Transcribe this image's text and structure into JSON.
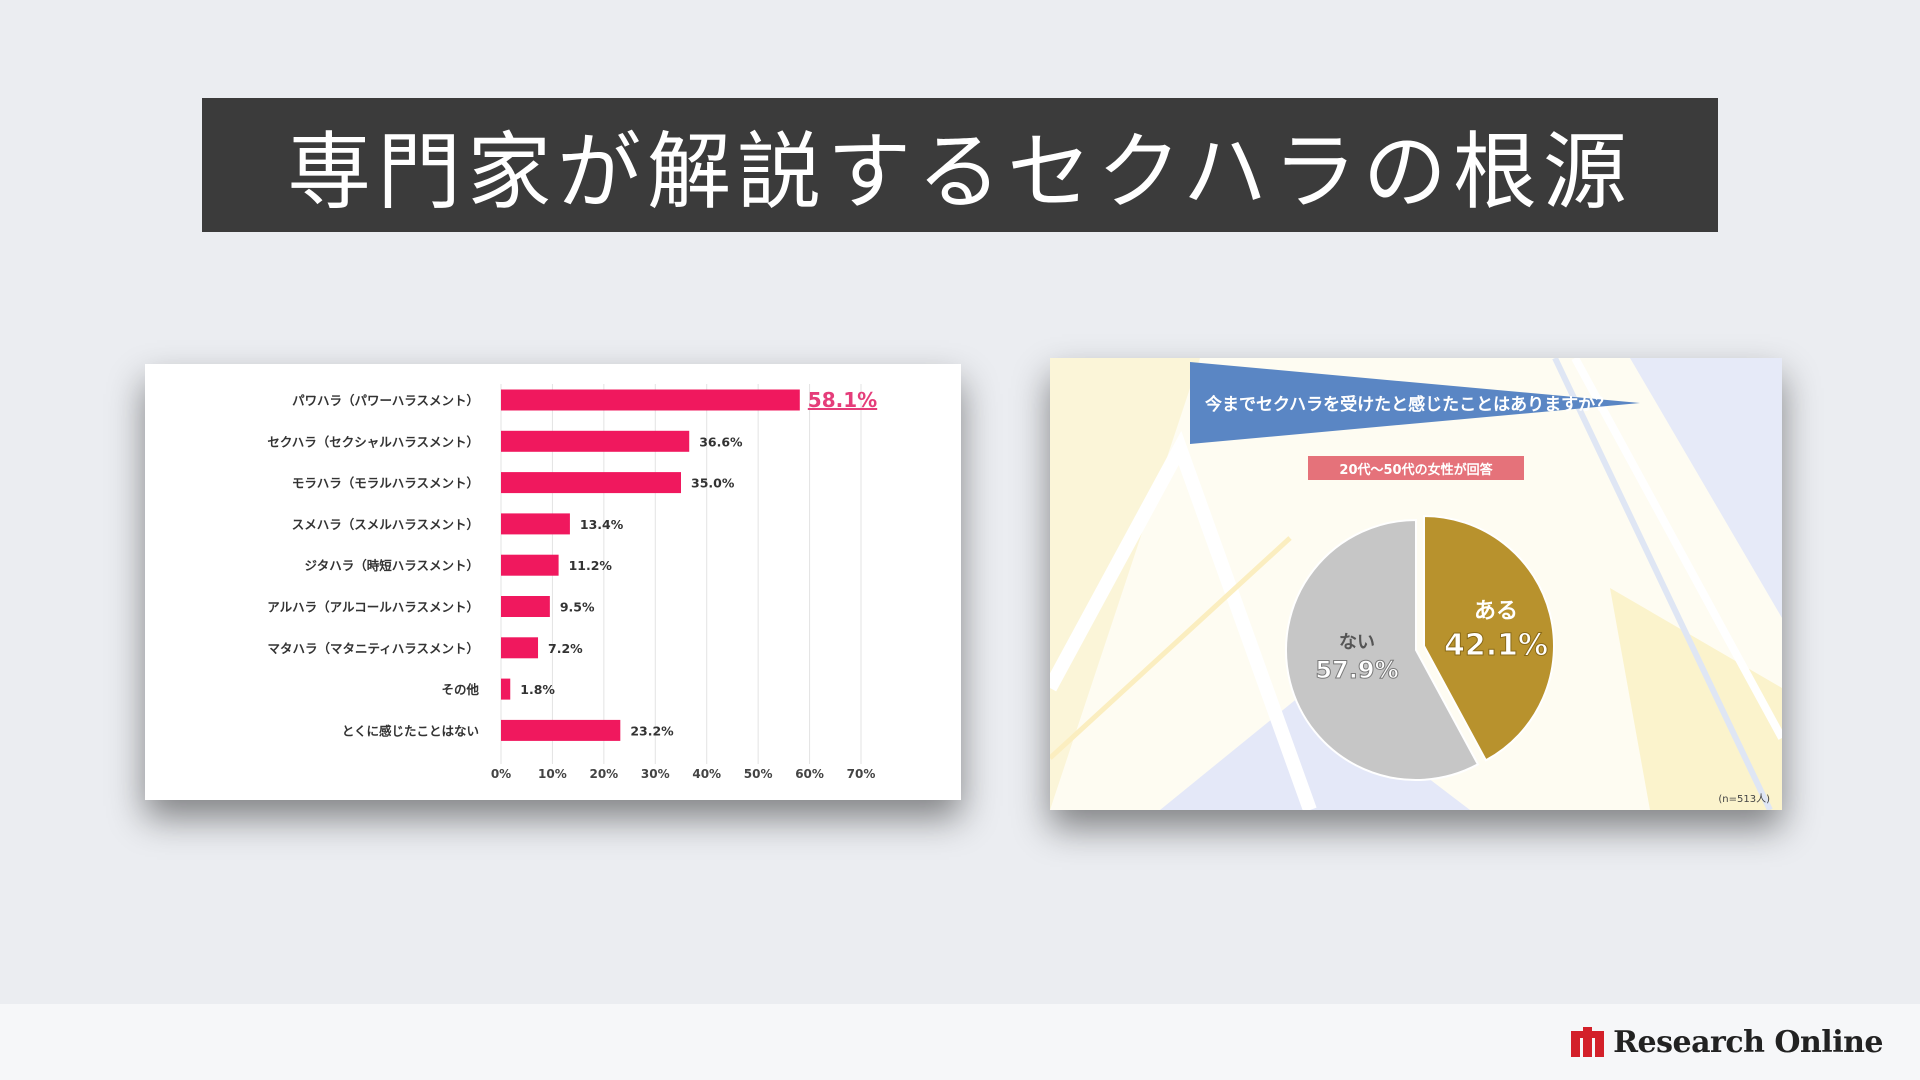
{
  "header": {
    "title": "専門家が解説するセクハラの根源"
  },
  "brand": {
    "name": "Research Online",
    "color": "#d3202a"
  },
  "chart_data": [
    {
      "type": "bar",
      "orientation": "horizontal",
      "categories": [
        "パワハラ（パワーハラスメント）",
        "セクハラ（セクシャルハラスメント）",
        "モラハラ（モラルハラスメント）",
        "スメハラ（スメルハラスメント）",
        "ジタハラ（時短ハラスメント）",
        "アルハラ（アルコールハラスメント）",
        "マタハラ（マタニティハラスメント）",
        "その他",
        "とくに感じたことはない"
      ],
      "values": [
        58.1,
        36.6,
        35.0,
        13.4,
        11.2,
        9.5,
        7.2,
        1.8,
        23.2
      ],
      "value_labels": [
        "58.1%",
        "36.6%",
        "35.0%",
        "13.4%",
        "11.2%",
        "9.5%",
        "7.2%",
        "1.8%",
        "23.2%"
      ],
      "xlim": [
        0,
        70
      ],
      "xticks": [
        "0%",
        "10%",
        "20%",
        "30%",
        "40%",
        "50%",
        "60%",
        "70%"
      ],
      "grid": true,
      "bar_color": "#f0185e",
      "highlight_label_color": "#e53d7a"
    },
    {
      "type": "pie",
      "title": "今までセクハラを受けたと感じたことはありますか？",
      "subtitle": "20代～50代の女性が回答",
      "slices": [
        {
          "label": "ある",
          "value": 42.1,
          "value_label": "42.1%",
          "color": "#b8922d"
        },
        {
          "label": "ない",
          "value": 57.9,
          "value_label": "57.9%",
          "color": "#c6c6c6"
        }
      ],
      "note": "(n=513人)",
      "title_bg": "#5a86c4",
      "subtitle_bg": "#e5727a"
    }
  ]
}
